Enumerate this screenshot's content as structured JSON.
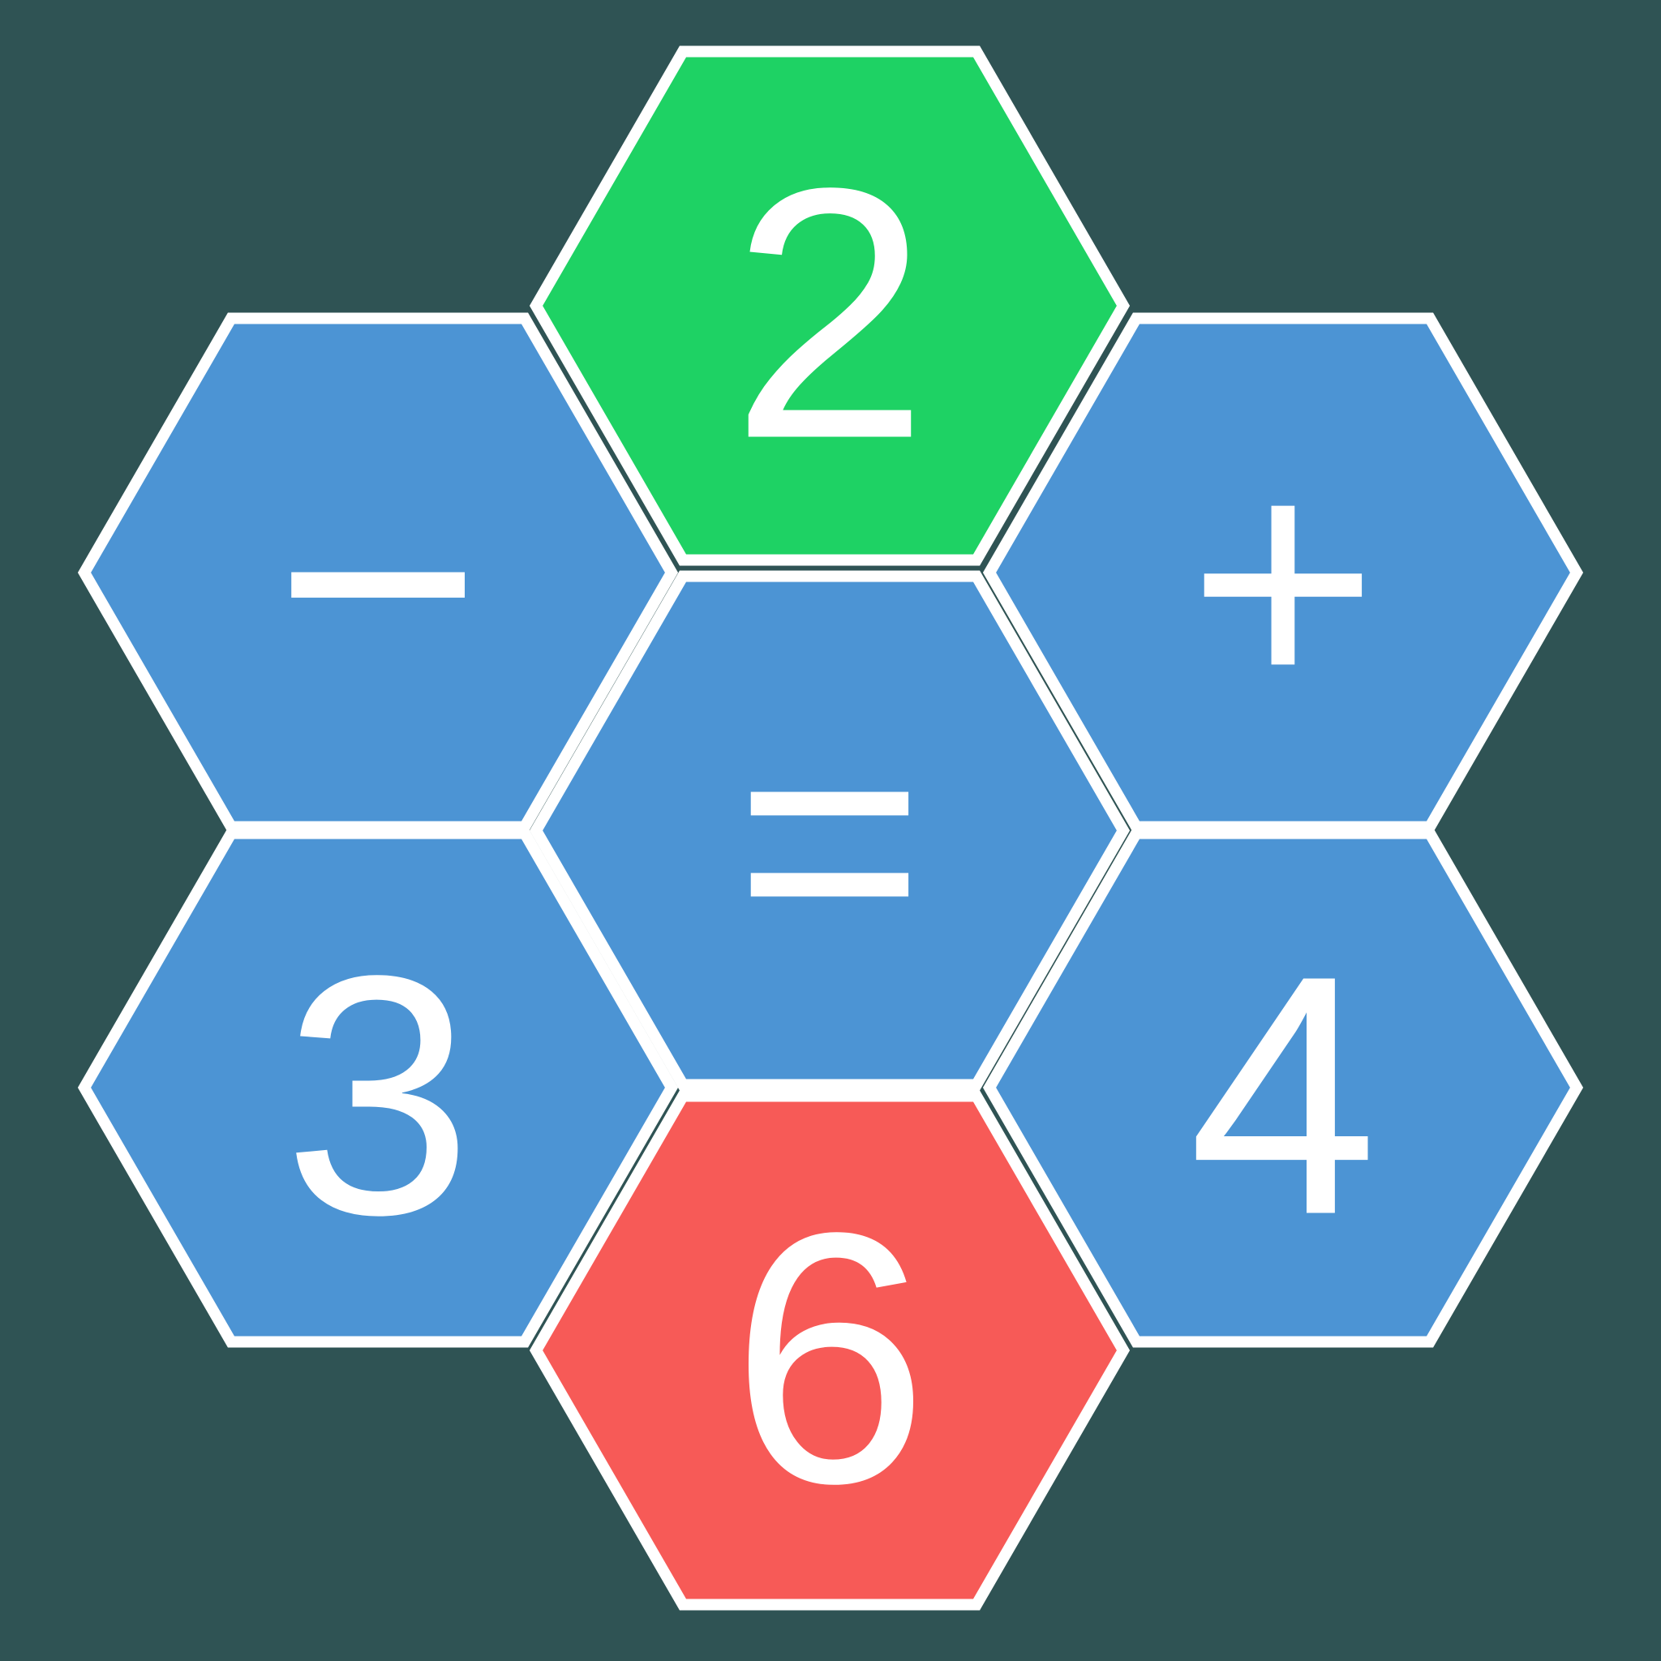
{
  "colors": {
    "background": "#2f5354",
    "tile_blue": "#4c94d4",
    "tile_green": "#1ed264",
    "tile_red": "#f75a57",
    "gap": "#ffffff",
    "glyph": "#ffffff"
  },
  "tiles": {
    "top": {
      "label": "2",
      "color": "tile_green"
    },
    "upper_left": {
      "label": "−",
      "color": "tile_blue"
    },
    "upper_right": {
      "label": "+",
      "color": "tile_blue"
    },
    "center": {
      "label": "=",
      "color": "tile_blue"
    },
    "lower_left": {
      "label": "3",
      "color": "tile_blue"
    },
    "lower_right": {
      "label": "4",
      "color": "tile_blue"
    },
    "bottom": {
      "label": "6",
      "color": "tile_red"
    }
  }
}
